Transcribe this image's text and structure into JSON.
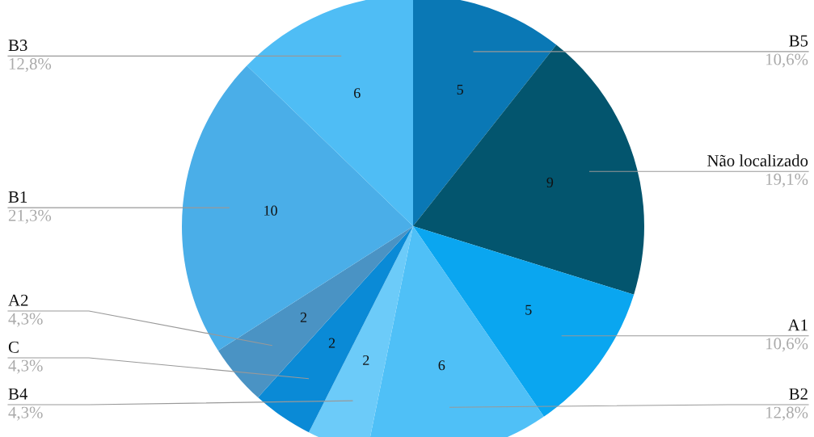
{
  "chart_data": {
    "type": "pie",
    "categories": [
      "B5",
      "Não localizado",
      "A1",
      "B2",
      "B4",
      "C",
      "A2",
      "B1",
      "B3"
    ],
    "values": [
      5,
      9,
      5,
      6,
      2,
      2,
      2,
      10,
      6
    ],
    "colors": [
      "#0a78b5",
      "#03556e",
      "#0aa6f0",
      "#4fc0f7",
      "#6ccbf9",
      "#0a8ad6",
      "#4a93c4",
      "#4aaee8",
      "#4fbdf5"
    ],
    "data_labels": true,
    "annotations": [
      "10,6%",
      "19,1%",
      "10,6%",
      "12,8%",
      "4,3%",
      "4,3%",
      "4,3%",
      "21,3%",
      "12,8%"
    ],
    "legend": false
  }
}
